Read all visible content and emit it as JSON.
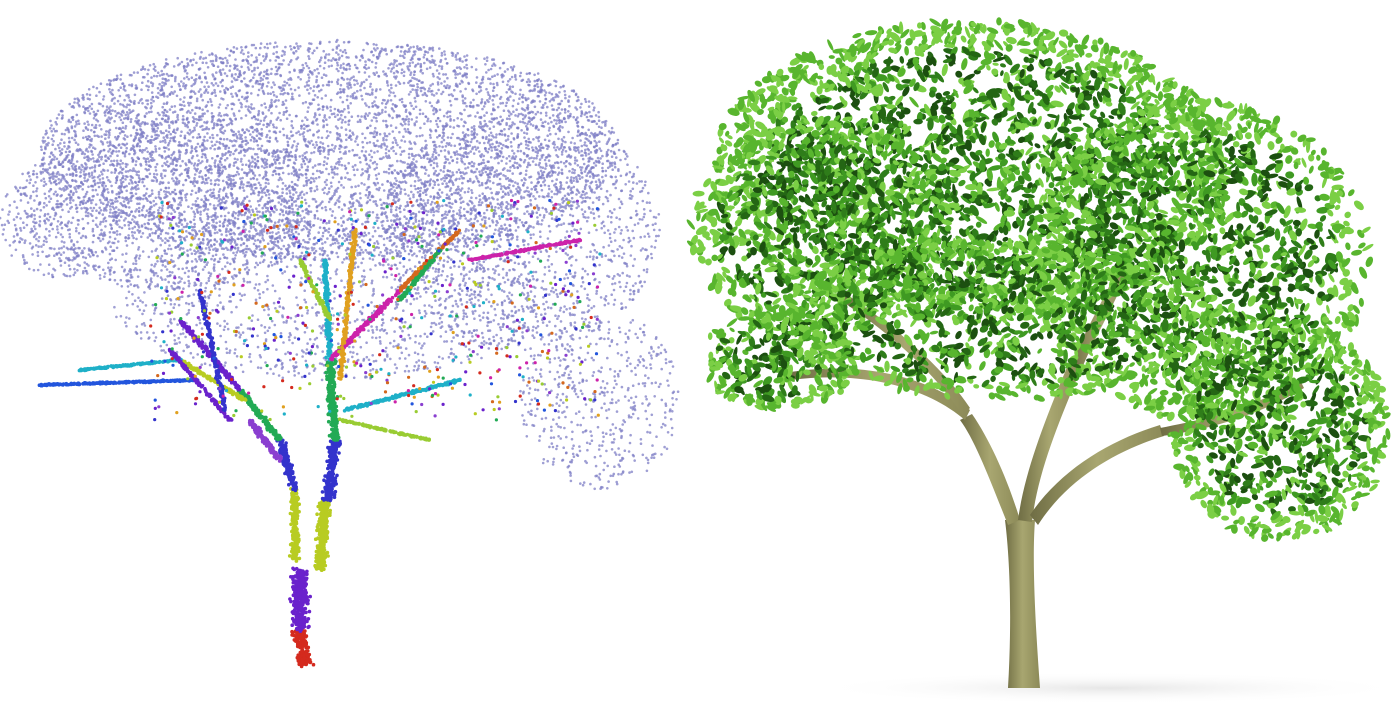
{
  "panels": [
    {
      "id": "pointcloud",
      "kind": "segmented point cloud of a tree",
      "foliage_color": "#7f7fc6",
      "segment_colors": [
        "#d42a1e",
        "#6a22cc",
        "#3333cc",
        "#b8cc22",
        "#22aa55",
        "#1fb0c8",
        "#cc22aa",
        "#d4681e",
        "#2255dd",
        "#99cc33",
        "#e0a020",
        "#8a3fd0"
      ]
    },
    {
      "id": "rendered-tree",
      "kind": "photorealistic rendered tree",
      "leaf_colors": [
        "#2f7d1a",
        "#3f9a22",
        "#58b52e",
        "#7bcf45",
        "#246614",
        "#1c4f10"
      ],
      "bark_colors": [
        "#8c8a58",
        "#a8a670",
        "#6f6d44"
      ],
      "shadow_color": "#e6e6e6"
    }
  ]
}
